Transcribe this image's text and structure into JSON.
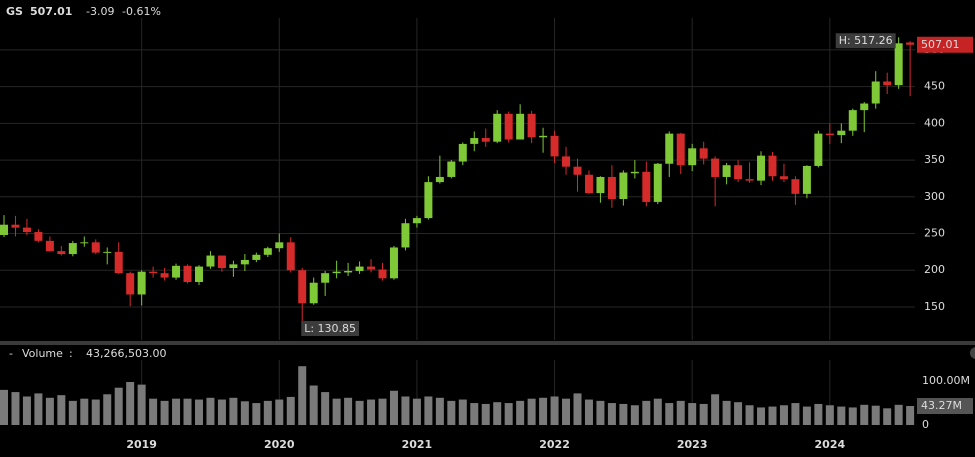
{
  "chart_data": [
    {
      "type": "candlestick",
      "ticker": "GS",
      "change": "-3.09",
      "change_pct": "-0.61%",
      "annotations": [
        "H: 517.26",
        "L: 130.85"
      ],
      "categories": [
        null,
        null,
        null,
        null,
        null,
        null,
        null,
        null,
        null,
        null,
        null,
        null,
        "2019",
        null,
        null,
        null,
        null,
        null,
        null,
        null,
        null,
        null,
        null,
        null,
        "2020",
        null,
        null,
        null,
        null,
        null,
        null,
        null,
        null,
        null,
        null,
        null,
        "2021",
        null,
        null,
        null,
        null,
        null,
        null,
        null,
        null,
        null,
        null,
        null,
        "2022",
        null,
        null,
        null,
        null,
        null,
        null,
        null,
        null,
        null,
        null,
        null,
        "2023",
        null,
        null,
        null,
        null,
        null,
        null,
        null,
        null,
        null,
        null,
        null,
        "2024",
        null,
        null,
        null,
        null,
        null,
        null,
        null
      ],
      "open": [
        248,
        262,
        258,
        252,
        240,
        226,
        222,
        237,
        238,
        224,
        225,
        196,
        167,
        198,
        196,
        190,
        206,
        184,
        205,
        220,
        203,
        208,
        214,
        221,
        230,
        238,
        200,
        155,
        183,
        196,
        197,
        199,
        205,
        201,
        189,
        231,
        264,
        271,
        320,
        327,
        348,
        372,
        380,
        375,
        413,
        378,
        413,
        381,
        383,
        355,
        341,
        330,
        305,
        327,
        297,
        332,
        334,
        293,
        345,
        386,
        343,
        366,
        352,
        327,
        343,
        324,
        322,
        356,
        328,
        324,
        304,
        342,
        386,
        384,
        390,
        418,
        427,
        457,
        452,
        510.1
      ],
      "high": [
        275,
        274,
        270,
        256,
        246,
        233,
        240,
        246,
        242,
        231,
        238,
        198,
        200,
        205,
        203,
        209,
        208,
        207,
        226,
        220,
        213,
        222,
        224,
        232,
        250,
        245,
        203,
        190,
        199,
        213,
        210,
        212,
        215,
        210,
        233,
        270,
        274,
        328,
        356,
        350,
        374,
        389,
        393,
        418,
        416,
        426,
        417,
        394,
        390,
        368,
        352,
        336,
        328,
        343,
        336,
        350,
        348,
        346,
        389,
        387,
        372,
        375,
        355,
        346,
        350,
        347,
        362,
        361,
        345,
        328,
        343,
        390,
        400,
        400,
        420,
        429,
        471,
        469,
        517.26,
        512
      ],
      "low": [
        245,
        246,
        248,
        238,
        225,
        220,
        219,
        232,
        222,
        208,
        195,
        151,
        152,
        190,
        186,
        187,
        182,
        180,
        202,
        198,
        191,
        199,
        211,
        218,
        225,
        197,
        130.85,
        153,
        165,
        189,
        192,
        195,
        197,
        186,
        187,
        227,
        258,
        269,
        318,
        325,
        343,
        362,
        368,
        373,
        374,
        378,
        373,
        360,
        346,
        330,
        307,
        304,
        292,
        285,
        288,
        325,
        287,
        290,
        327,
        331,
        335,
        344,
        287,
        317,
        320,
        319,
        316,
        322,
        320,
        289,
        298,
        340,
        372,
        373,
        383,
        388,
        420,
        440,
        447,
        437
      ],
      "close": [
        262,
        258,
        252,
        240,
        226,
        222,
        237,
        238,
        224,
        225,
        196,
        167,
        198,
        196,
        190,
        206,
        184,
        205,
        220,
        203,
        208,
        214,
        221,
        230,
        238,
        200,
        155,
        183,
        196,
        198,
        199,
        205,
        201,
        189,
        231,
        264,
        271,
        320,
        327,
        348,
        372,
        380,
        375,
        413,
        378,
        413,
        381,
        383,
        355,
        341,
        330,
        305,
        327,
        297,
        333,
        334,
        293,
        345,
        386,
        343,
        366,
        352,
        327,
        343,
        324,
        322,
        356,
        328,
        324,
        304,
        342,
        386,
        384,
        390,
        418,
        427,
        457,
        452,
        509,
        507.01
      ],
      "up_color": "#7fc837",
      "down_color": "#d52b2b",
      "ylim": [
        105,
        538
      ],
      "yticks": [
        150,
        200,
        250,
        300,
        350,
        400,
        450,
        500
      ],
      "grid": true
    },
    {
      "type": "bar",
      "name": "Volume",
      "legend_value": "43,266,503.00",
      "values": [
        80,
        75,
        65,
        72,
        62,
        68,
        55,
        60,
        58,
        70,
        85,
        98,
        92,
        60,
        55,
        60,
        60,
        58,
        62,
        58,
        62,
        54,
        50,
        55,
        58,
        64,
        134,
        90,
        75,
        60,
        62,
        55,
        58,
        60,
        78,
        65,
        60,
        65,
        62,
        55,
        58,
        50,
        48,
        52,
        50,
        55,
        60,
        62,
        65,
        60,
        72,
        58,
        55,
        50,
        48,
        45,
        55,
        60,
        50,
        55,
        50,
        48,
        70,
        55,
        52,
        45,
        40,
        42,
        45,
        50,
        42,
        48,
        45,
        42,
        40,
        46,
        44,
        38,
        46,
        43.266503
      ],
      "value_labels": [
        null,
        null,
        null,
        null,
        null,
        null,
        null,
        null,
        null,
        null,
        null,
        null,
        null,
        null,
        null,
        null,
        null,
        null,
        null,
        null,
        null,
        null,
        null,
        null,
        null,
        null,
        null,
        null,
        null,
        null,
        null,
        null,
        null,
        null,
        null,
        null,
        null,
        null,
        null,
        null,
        null,
        null,
        null,
        null,
        null,
        null,
        null,
        null,
        null,
        null,
        null,
        null,
        null,
        null,
        null,
        null,
        null,
        null,
        null,
        null,
        null,
        null,
        null,
        null,
        null,
        null,
        null,
        null,
        null,
        null,
        null,
        null,
        null,
        null,
        null,
        null,
        null,
        null,
        null,
        "43.27M"
      ],
      "color": "#7a7a7a",
      "ylim": [
        0,
        139
      ],
      "yticks": [
        0,
        {
          "value": 100,
          "label": "100.00M"
        }
      ]
    }
  ]
}
